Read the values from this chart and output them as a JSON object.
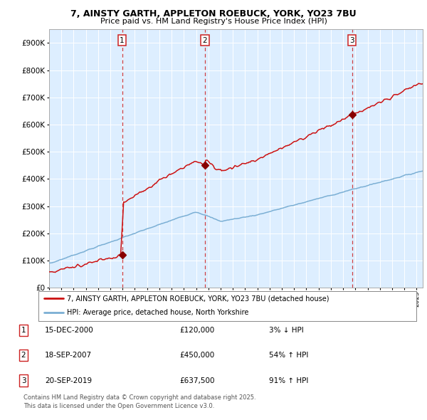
{
  "title_line1": "7, AINSTY GARTH, APPLETON ROEBUCK, YORK, YO23 7BU",
  "title_line2": "Price paid vs. HM Land Registry's House Price Index (HPI)",
  "ylim": [
    0,
    950000
  ],
  "xlim_start": 1995.0,
  "xlim_end": 2025.5,
  "background_color": "#ffffff",
  "plot_bg_color": "#ddeeff",
  "grid_color": "#ccddee",
  "sale_dates": [
    2000.958,
    2007.717,
    2019.722
  ],
  "sale_prices": [
    120000,
    450000,
    637500
  ],
  "sale_labels": [
    "1",
    "2",
    "3"
  ],
  "vline_color": "#cc2222",
  "red_line_color": "#cc1111",
  "blue_line_color": "#7bafd4",
  "marker_color": "#880000",
  "legend_label_red": "7, AINSTY GARTH, APPLETON ROEBUCK, YORK, YO23 7BU (detached house)",
  "legend_label_blue": "HPI: Average price, detached house, North Yorkshire",
  "table_rows": [
    {
      "num": "1",
      "date": "15-DEC-2000",
      "price": "£120,000",
      "change": "3% ↓ HPI"
    },
    {
      "num": "2",
      "date": "18-SEP-2007",
      "price": "£450,000",
      "change": "54% ↑ HPI"
    },
    {
      "num": "3",
      "date": "20-SEP-2019",
      "price": "£637,500",
      "change": "91% ↑ HPI"
    }
  ],
  "footer": "Contains HM Land Registry data © Crown copyright and database right 2025.\nThis data is licensed under the Open Government Licence v3.0."
}
